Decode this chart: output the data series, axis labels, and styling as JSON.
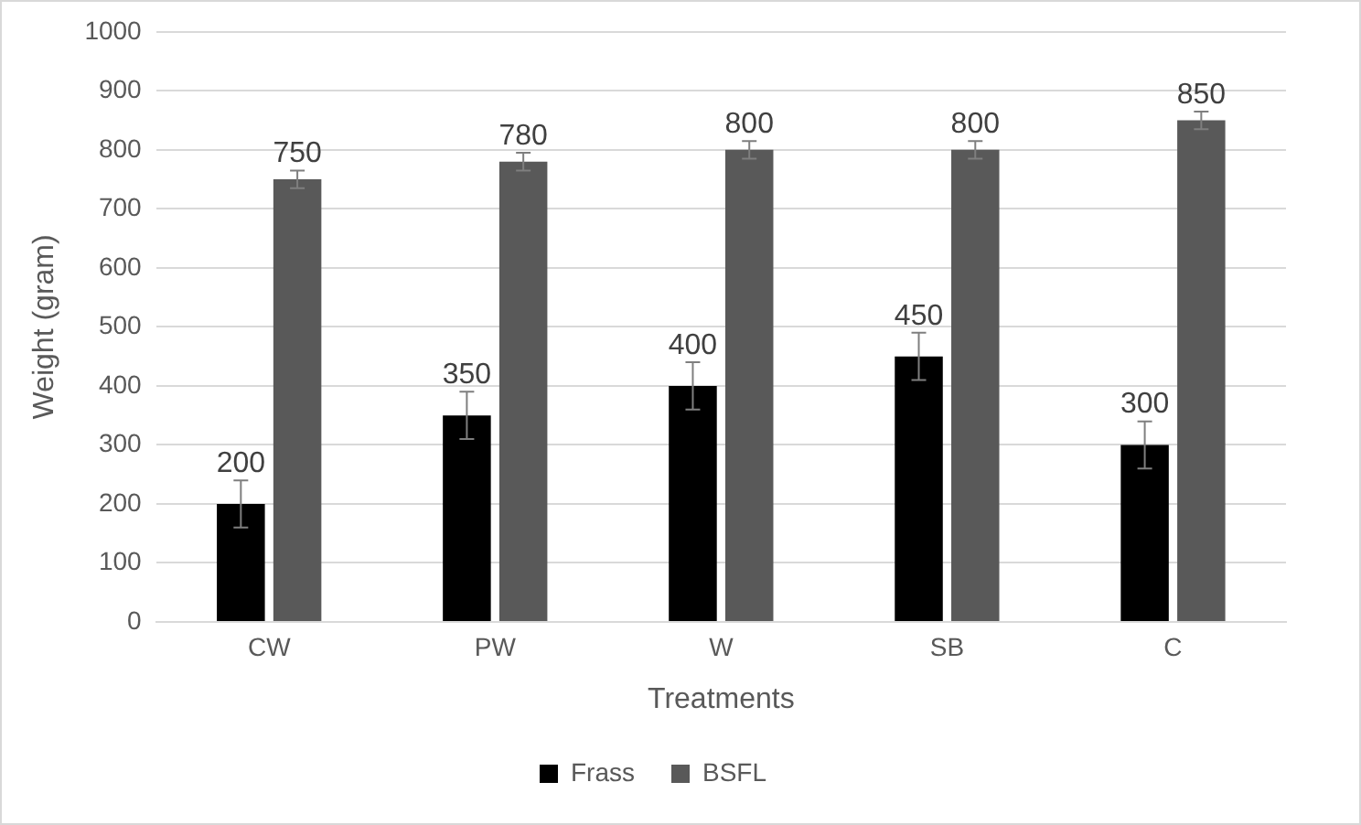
{
  "chart_data": {
    "type": "bar",
    "xlabel": "Treatments",
    "ylabel": "Weight (gram)",
    "categories": [
      "CW",
      "PW",
      "W",
      "SB",
      "C"
    ],
    "series": [
      {
        "name": "Frass",
        "color": "#000000",
        "values": [
          200,
          350,
          400,
          450,
          300
        ],
        "errors": [
          40,
          40,
          40,
          40,
          40
        ]
      },
      {
        "name": "BSFL",
        "color": "#595959",
        "values": [
          750,
          780,
          800,
          800,
          850
        ],
        "errors": [
          15,
          15,
          15,
          15,
          15
        ]
      }
    ],
    "ylim": [
      0,
      1000
    ],
    "yticks": [
      0,
      100,
      200,
      300,
      400,
      500,
      600,
      700,
      800,
      900,
      1000
    ],
    "grid": "y",
    "legend": "bottom",
    "data_labels": true
  }
}
